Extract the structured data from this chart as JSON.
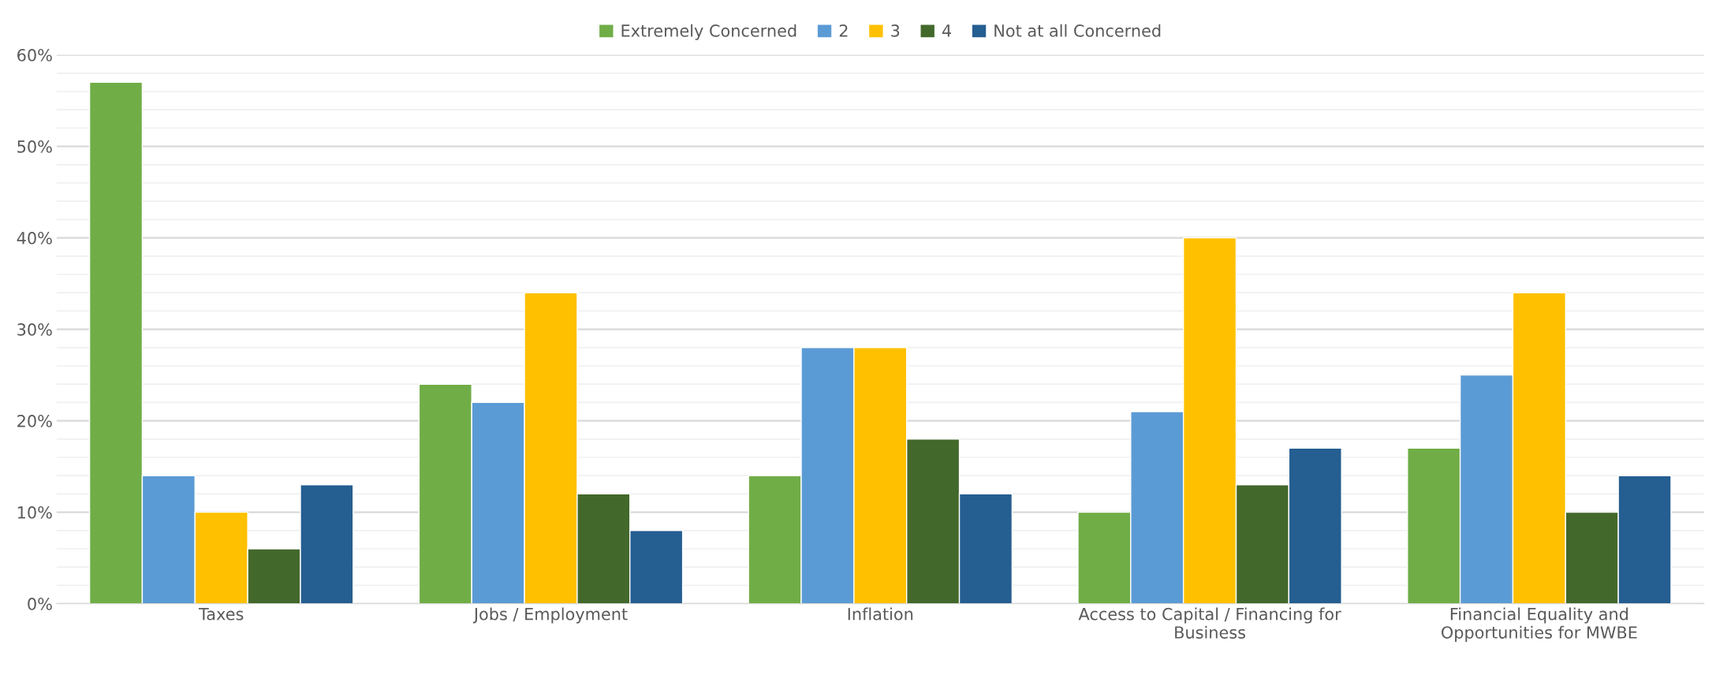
{
  "chart_data": {
    "type": "bar",
    "categories": [
      "Taxes",
      "Jobs / Employment",
      "Inflation",
      "Access to Capital / Financing for Business",
      "Financial Equality and Opportunities for MWBE"
    ],
    "series": [
      {
        "name": "Extremely Concerned",
        "color": "#70ad47",
        "values": [
          57,
          24,
          14,
          10,
          17
        ]
      },
      {
        "name": "2",
        "color": "#5b9bd5",
        "values": [
          14,
          22,
          28,
          21,
          25
        ]
      },
      {
        "name": "3",
        "color": "#ffc000",
        "values": [
          10,
          34,
          28,
          40,
          34
        ]
      },
      {
        "name": "4",
        "color": "#43682b",
        "values": [
          6,
          12,
          18,
          13,
          10
        ]
      },
      {
        "name": "Not at all Concerned",
        "color": "#255e91",
        "values": [
          13,
          8,
          12,
          17,
          14
        ]
      }
    ],
    "ylim": [
      0,
      60
    ],
    "yticks": [
      {
        "value": 0,
        "label": "0%"
      },
      {
        "value": 2,
        "label": null
      },
      {
        "value": 4,
        "label": null
      },
      {
        "value": 6,
        "label": null
      },
      {
        "value": 8,
        "label": null
      },
      {
        "value": 10,
        "label": "10%"
      },
      {
        "value": 12,
        "label": null
      },
      {
        "value": 14,
        "label": null
      },
      {
        "value": 16,
        "label": null
      },
      {
        "value": 18,
        "label": null
      },
      {
        "value": 20,
        "label": "20%"
      },
      {
        "value": 22,
        "label": null
      },
      {
        "value": 24,
        "label": null
      },
      {
        "value": 26,
        "label": null
      },
      {
        "value": 28,
        "label": null
      },
      {
        "value": 30,
        "label": "30%"
      },
      {
        "value": 32,
        "label": null
      },
      {
        "value": 34,
        "label": null
      },
      {
        "value": 36,
        "label": null
      },
      {
        "value": 38,
        "label": null
      },
      {
        "value": 40,
        "label": "40%"
      },
      {
        "value": 42,
        "label": null
      },
      {
        "value": 44,
        "label": null
      },
      {
        "value": 46,
        "label": null
      },
      {
        "value": 48,
        "label": null
      },
      {
        "value": 50,
        "label": "50%"
      },
      {
        "value": 52,
        "label": null
      },
      {
        "value": 54,
        "label": null
      },
      {
        "value": 56,
        "label": null
      },
      {
        "value": 58,
        "label": null
      },
      {
        "value": 60,
        "label": "60%"
      }
    ],
    "grid": "y",
    "legend": "top"
  }
}
